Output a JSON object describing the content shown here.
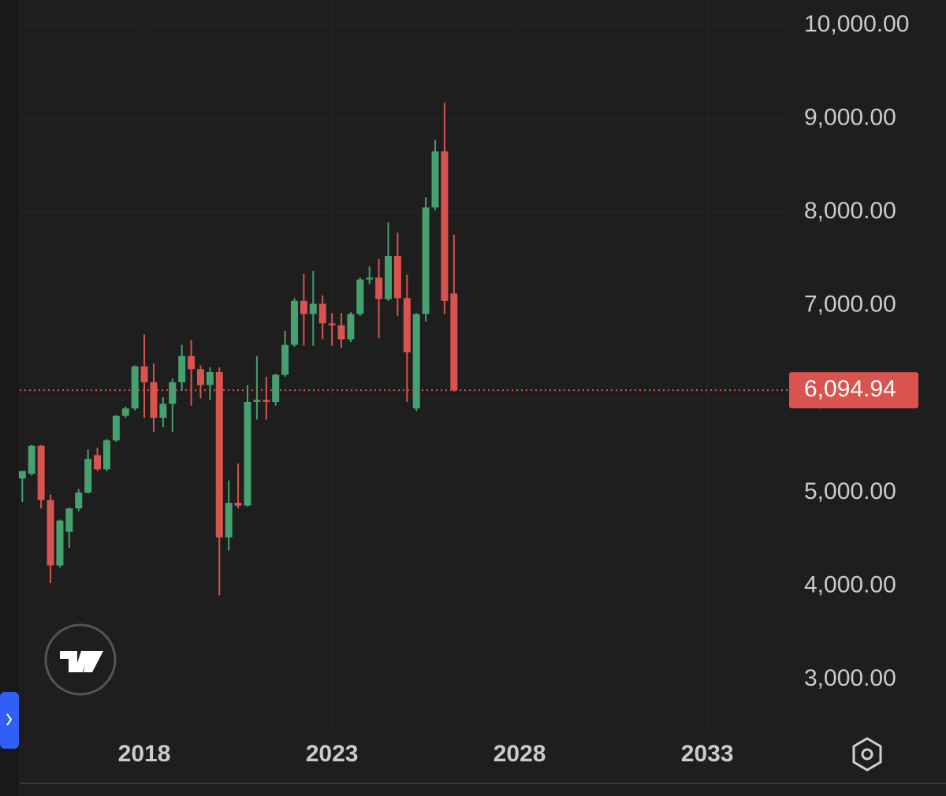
{
  "chart_data": {
    "type": "candlestick",
    "x": [
      2014.75,
      2015,
      2015.25,
      2015.5,
      2015.75,
      2016,
      2016.25,
      2016.5,
      2016.75,
      2017,
      2017.25,
      2017.5,
      2017.75,
      2018,
      2018.25,
      2018.5,
      2018.75,
      2019,
      2019.25,
      2019.5,
      2019.75,
      2020,
      2020.25,
      2020.5,
      2020.75,
      2021,
      2021.25,
      2021.5,
      2021.75,
      2022,
      2022.25,
      2022.5,
      2022.75,
      2023,
      2023.25,
      2023.5,
      2023.75,
      2024,
      2024.25,
      2024.5,
      2024.75,
      2025,
      2025.25,
      2025.5,
      2025.75,
      2026,
      2026.25
    ],
    "open": [
      5150,
      5200,
      5500,
      4920,
      4220,
      4580,
      4830,
      5000,
      5400,
      5250,
      5560,
      5820,
      5900,
      6350,
      6180,
      5800,
      5950,
      6180,
      6460,
      6320,
      6150,
      6290,
      4520,
      4890,
      4860,
      5970,
      5990,
      5970,
      6260,
      6580,
      7050,
      6910,
      7020,
      6810,
      6790,
      6640,
      6910,
      7280,
      7300,
      7070,
      7530,
      7080,
      5900,
      6910,
      8050,
      8650,
      7130
    ],
    "high": [
      5230,
      5510,
      5510,
      4980,
      4710,
      4840,
      5040,
      5460,
      5480,
      5570,
      5830,
      5920,
      6360,
      6690,
      6380,
      6020,
      6220,
      6580,
      6630,
      6360,
      6340,
      6340,
      5130,
      5310,
      6150,
      6460,
      6240,
      6270,
      6730,
      7080,
      7340,
      7370,
      7110,
      6920,
      6920,
      6930,
      7300,
      7420,
      7500,
      7890,
      7780,
      7330,
      6920,
      8160,
      8770,
      9170,
      7760
    ],
    "low": [
      4900,
      5180,
      4830,
      4030,
      4200,
      4410,
      4800,
      4990,
      5230,
      5230,
      5540,
      5800,
      5880,
      5800,
      5650,
      5700,
      5650,
      6090,
      5930,
      6010,
      5990,
      3900,
      4380,
      4830,
      4850,
      5780,
      5780,
      5930,
      6240,
      6560,
      6570,
      6570,
      6640,
      6570,
      6550,
      6610,
      6890,
      7230,
      6650,
      7050,
      6890,
      5970,
      5870,
      6830,
      8020,
      6910,
      6080
    ],
    "close": [
      5230,
      5500,
      4920,
      4220,
      4700,
      4830,
      5000,
      5360,
      5250,
      5560,
      5820,
      5900,
      6350,
      6180,
      5800,
      5950,
      6180,
      6460,
      6320,
      6150,
      6290,
      4520,
      4890,
      4860,
      5970,
      5990,
      5970,
      6260,
      6580,
      7050,
      6910,
      7020,
      6810,
      6790,
      6640,
      6910,
      7280,
      7300,
      7070,
      7530,
      7080,
      6500,
      6910,
      8050,
      8650,
      7050,
      6094.94
    ],
    "up_color": "#45a16f",
    "down_color": "#d9534f",
    "xlim": [
      2014.68,
      2035.16
    ],
    "xticks": [
      2018,
      2023,
      2028,
      2033
    ],
    "ylim": [
      2428,
      10270
    ],
    "yticks": [
      {
        "value": 3000,
        "label": "3,000.00"
      },
      {
        "value": 4000,
        "label": "4,000.00"
      },
      {
        "value": 5000,
        "label": "5,000.00"
      },
      {
        "value": 6000,
        "label": "6,000.00"
      },
      {
        "value": 7000,
        "label": "7,000.00"
      },
      {
        "value": 8000,
        "label": "8,000.00"
      },
      {
        "value": 9000,
        "label": "9,000.00"
      },
      {
        "value": 10000,
        "label": "10,000.00"
      }
    ],
    "last_price": {
      "value": 6094.94,
      "label": "6,094.94"
    },
    "grid": true
  }
}
